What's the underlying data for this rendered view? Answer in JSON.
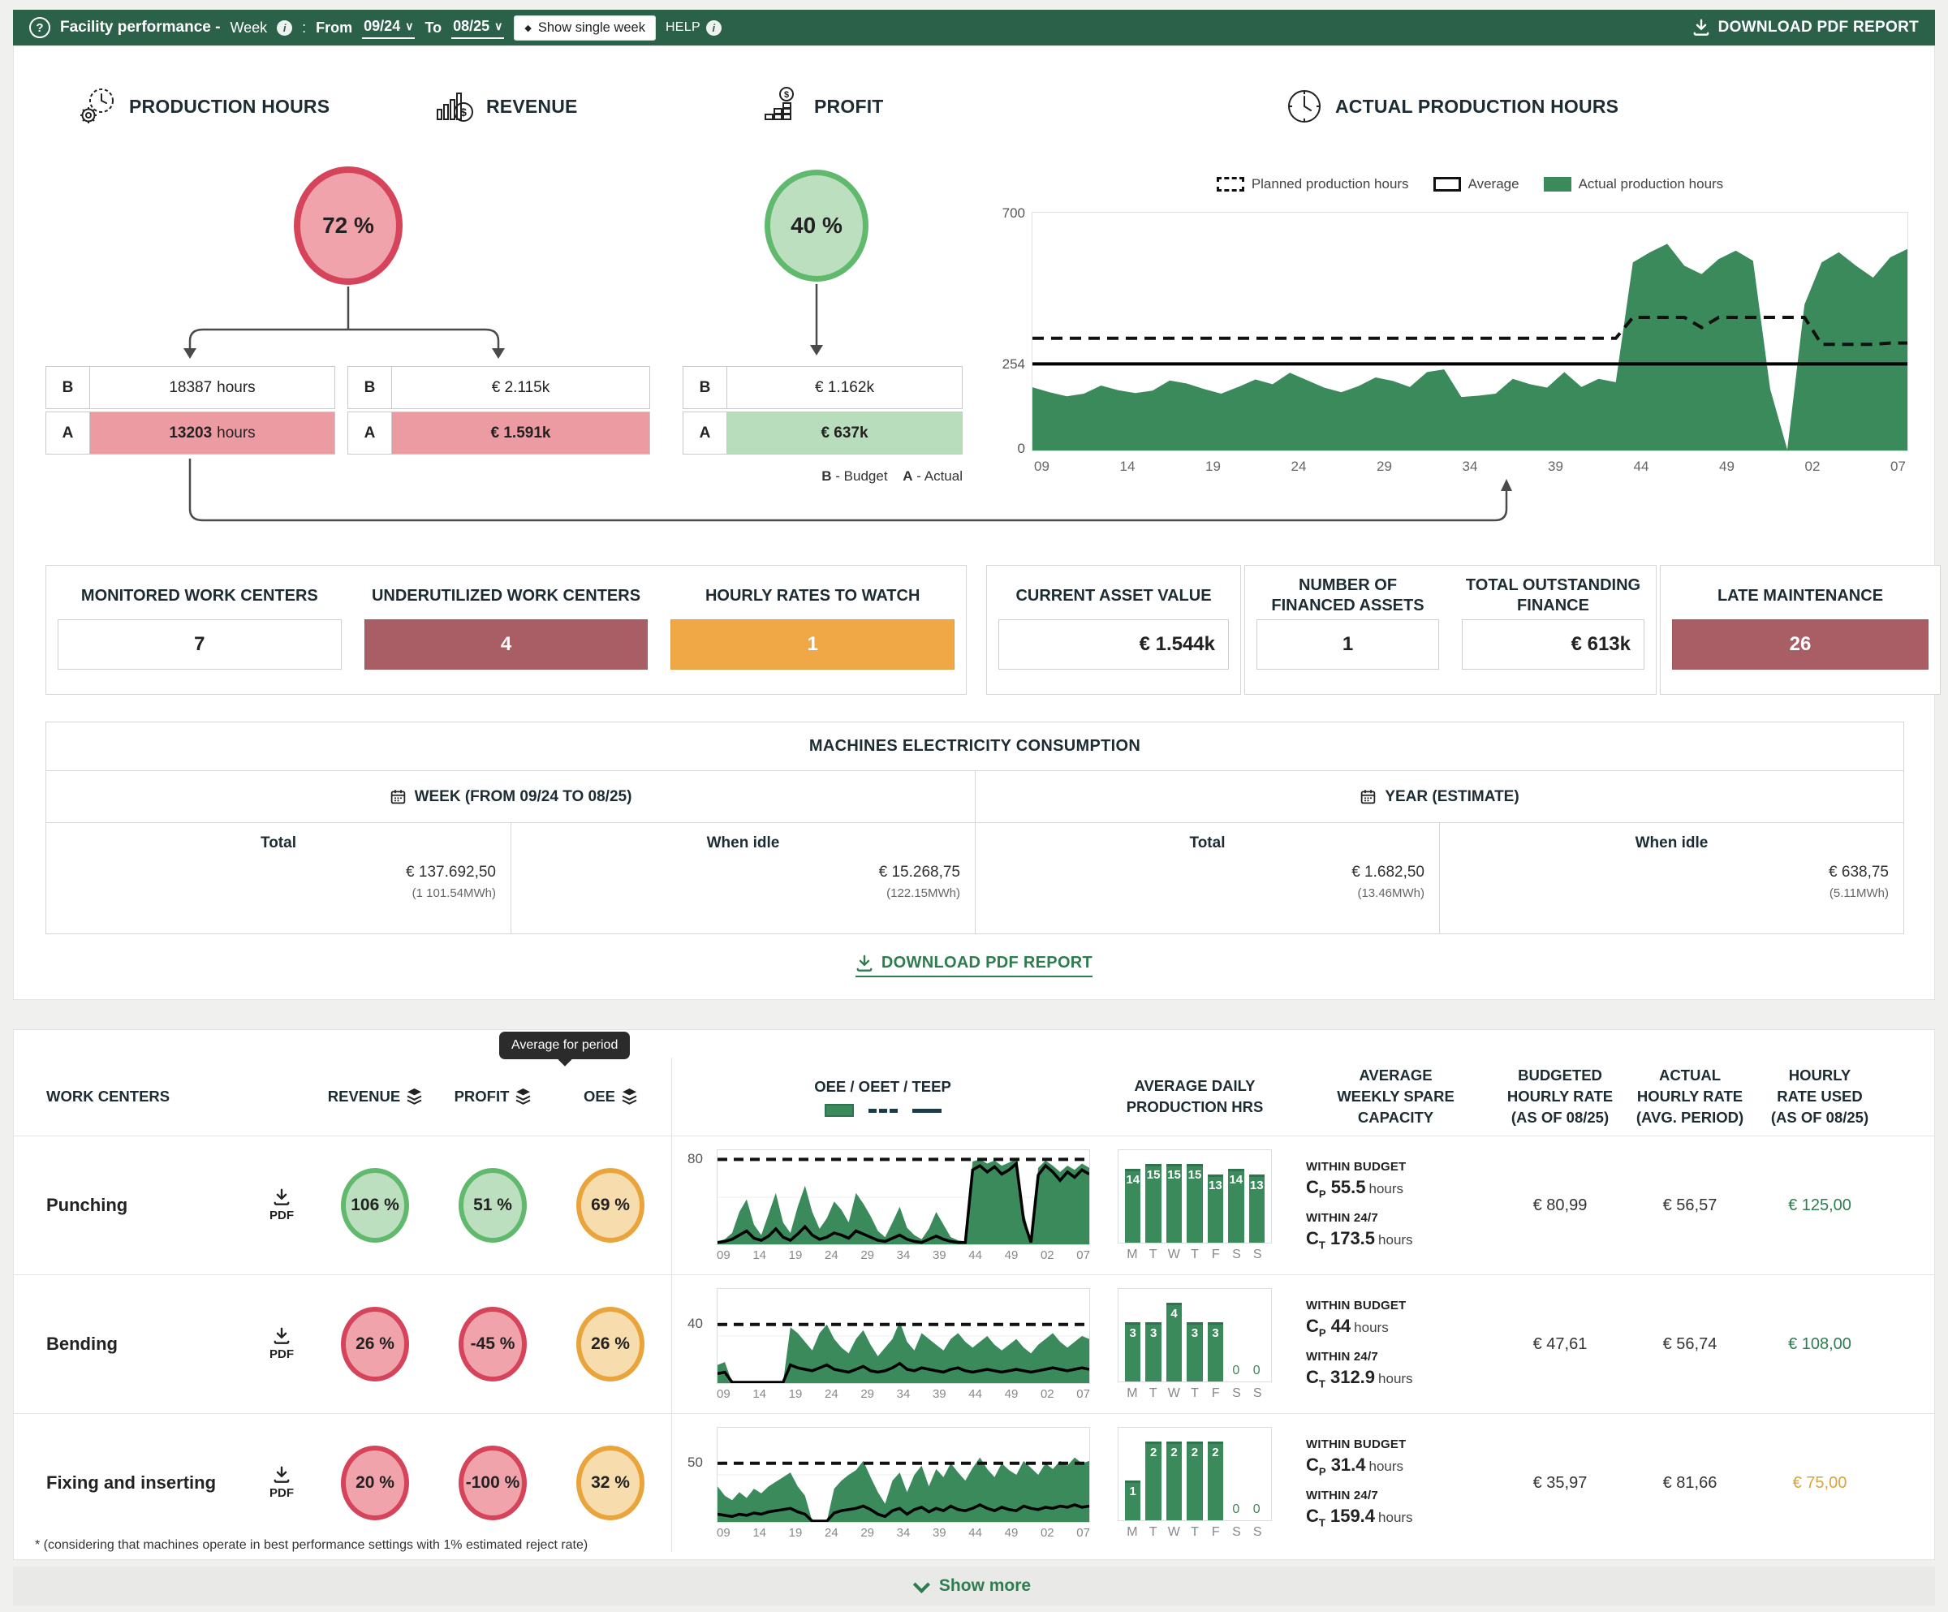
{
  "colors": {
    "header_green": "#2c6149",
    "chart_green": "#3a8a5c",
    "link_green": "#2e7d51",
    "red_border": "#d6445c",
    "red_fill": "#f0a3ab",
    "green_border": "#61b96d",
    "green_fill": "#bcdfc0",
    "orange_border": "#e9a43b",
    "orange_fill": "#f7dcae",
    "dark_red_box": "#a95e65",
    "orange_box": "#efa845",
    "rate_orange": "#d9a43a"
  },
  "header": {
    "logo_glyph": "?",
    "title": "Facility performance -",
    "week_label": "Week",
    "colon": ":",
    "from_label": "From",
    "from_value": "09/24",
    "to_label": "To",
    "to_value": "08/25",
    "single_week_button": "Show single week",
    "help_label": "HELP",
    "download_button": "DOWNLOAD PDF REPORT"
  },
  "kpi": {
    "production_hours": {
      "title": "PRODUCTION HOURS",
      "percent": "72 %",
      "status": "red",
      "budget_num": "18387",
      "budget_unit": "hours",
      "actual_num": "13203",
      "actual_unit": "hours",
      "actual_status": "red"
    },
    "revenue": {
      "title": "REVENUE",
      "budget": "€ 2.115k",
      "actual": "€ 1.591k",
      "actual_status": "red"
    },
    "profit": {
      "title": "PROFIT",
      "percent": "40 %",
      "status": "green",
      "budget": "€ 1.162k",
      "actual": "€ 637k",
      "actual_status": "green"
    },
    "row_label_budget": "B",
    "row_label_actual": "A",
    "legend": {
      "b": "B",
      "b_text": "- Budget",
      "a": "A",
      "a_text": "- Actual"
    }
  },
  "production_chart": {
    "title": "ACTUAL PRODUCTION HOURS",
    "legend_planned": "Planned production hours",
    "legend_average": "Average",
    "legend_actual": "Actual production hours",
    "y_tick_top": "700",
    "y_tick_mid": "254",
    "y_tick_bottom": "0"
  },
  "stats": {
    "monitored": {
      "label": "MONITORED WORK CENTERS",
      "value": "7",
      "style": "plain"
    },
    "underutilized": {
      "label": "UNDERUTILIZED WORK CENTERS",
      "value": "4",
      "style": "darkred"
    },
    "hourly_watch": {
      "label": "HOURLY RATES TO WATCH",
      "value": "1",
      "style": "orange"
    },
    "asset_value": {
      "label": "CURRENT ASSET VALUE",
      "value": "€ 1.544k"
    },
    "financed_assets": {
      "label": "NUMBER OF FINANCED ASSETS",
      "value": "1"
    },
    "outstanding_finance": {
      "label": "TOTAL OUTSTANDING FINANCE",
      "value": "€ 613k"
    },
    "late_maintenance": {
      "label": "LATE MAINTENANCE",
      "value": "26"
    }
  },
  "electricity": {
    "title": "MACHINES ELECTRICITY CONSUMPTION",
    "week_header": "WEEK (FROM 09/24 TO 08/25)",
    "year_header": "YEAR (ESTIMATE)",
    "col_total": "Total",
    "col_idle": "When idle",
    "week_total": "€ 137.692,50",
    "week_total_mwh": "(1 101.54MWh)",
    "week_idle": "€ 15.268,75",
    "week_idle_mwh": "(122.15MWh)",
    "year_total": "€ 1.682,50",
    "year_total_mwh": "(13.46MWh)",
    "year_idle": "€ 638,75",
    "year_idle_mwh": "(5.11MWh)"
  },
  "download_link": "DOWNLOAD PDF REPORT",
  "table": {
    "tooltip": "Average for period",
    "headers": {
      "work_centers": "WORK CENTERS",
      "revenue": "REVENUE",
      "profit": "PROFIT",
      "oee": "OEE",
      "oee_legend_title": "OEE / OEET / TEEP",
      "daily": "AVERAGE DAILY PRODUCTION HRS",
      "spare": "AVERAGE WEEKLY SPARE CAPACITY",
      "budgeted": "BUDGETED HOURLY RATE (AS OF 08/25)",
      "actual": "ACTUAL HOURLY RATE (AVG. PERIOD)",
      "used": "HOURLY RATE USED (AS OF 08/25)"
    },
    "within_budget_label": "WITHIN BUDGET",
    "within_247_label": "WITHIN 24/7",
    "cp_symbol": "C",
    "cp_sub": "P",
    "ct_symbol": "C",
    "ct_sub": "T",
    "hours_unit": "hours",
    "pdf_label": "PDF",
    "rows": [
      {
        "name": "Punching",
        "revenue": "106 %",
        "revenue_status": "green",
        "profit": "51 %",
        "profit_status": "green",
        "oee": "69 %",
        "oee_status": "orange",
        "cp": "55.5",
        "ct": "173.5",
        "budgeted_rate": "€ 80,99",
        "actual_rate": "€ 56,57",
        "used_rate": "€ 125,00",
        "used_rate_status": "green"
      },
      {
        "name": "Bending",
        "revenue": "26 %",
        "revenue_status": "red",
        "profit": "-45 %",
        "profit_status": "red",
        "oee": "26 %",
        "oee_status": "orange",
        "cp": "44",
        "ct": "312.9",
        "budgeted_rate": "€ 47,61",
        "actual_rate": "€ 56,74",
        "used_rate": "€ 108,00",
        "used_rate_status": "green"
      },
      {
        "name": "Fixing and inserting",
        "revenue": "20 %",
        "revenue_status": "red",
        "profit": "-100 %",
        "profit_status": "red",
        "oee": "32 %",
        "oee_status": "orange",
        "cp": "31.4",
        "ct": "159.4",
        "budgeted_rate": "€ 35,97",
        "actual_rate": "€ 81,66",
        "used_rate": "€ 75,00",
        "used_rate_status": "orange"
      }
    ]
  },
  "footnote": "* (considering that machines operate in best performance settings with 1% estimated reject rate)",
  "show_more": "Show more",
  "chart_data": {
    "actual_production_hours": {
      "type": "area",
      "ymax": 700,
      "ylim": [
        0,
        700
      ],
      "x_ticks": [
        "09",
        "14",
        "19",
        "24",
        "29",
        "34",
        "39",
        "44",
        "49",
        "02",
        "07"
      ],
      "series": {
        "actual": [
          185,
          170,
          158,
          166,
          190,
          176,
          168,
          175,
          205,
          196,
          180,
          166,
          186,
          208,
          194,
          228,
          206,
          184,
          170,
          188,
          214,
          204,
          186,
          230,
          238,
          156,
          160,
          166,
          210,
          194,
          184,
          230,
          186,
          210,
          200,
          555,
          585,
          610,
          545,
          520,
          565,
          590,
          560,
          180,
          0,
          430,
          555,
          585,
          545,
          510,
          570,
          595
        ],
        "planned": [
          330,
          330,
          330,
          330,
          330,
          330,
          330,
          330,
          330,
          330,
          330,
          330,
          330,
          330,
          330,
          330,
          330,
          330,
          330,
          330,
          330,
          330,
          330,
          330,
          330,
          330,
          330,
          330,
          330,
          330,
          330,
          330,
          330,
          330,
          330,
          392,
          392,
          392,
          392,
          362,
          392,
          392,
          392,
          392,
          392,
          392,
          312,
          312,
          312,
          312,
          316,
          316
        ],
        "average": 254
      }
    },
    "punching_oee": {
      "type": "area",
      "ymax": 88,
      "x_ticks": [
        "09",
        "14",
        "19",
        "24",
        "29",
        "34",
        "39",
        "44",
        "49",
        "02",
        "07"
      ],
      "series": {
        "oee": [
          2,
          4,
          10,
          30,
          42,
          18,
          8,
          28,
          48,
          20,
          10,
          35,
          55,
          30,
          14,
          24,
          40,
          32,
          20,
          48,
          38,
          26,
          12,
          6,
          20,
          35,
          15,
          8,
          4,
          14,
          30,
          18,
          6,
          3,
          2,
          78,
          80,
          76,
          79,
          74,
          77,
          80,
          30,
          2,
          72,
          79,
          74,
          68,
          74,
          70,
          76,
          72
        ],
        "teep": [
          1,
          2,
          4,
          8,
          12,
          5,
          3,
          7,
          14,
          6,
          3,
          9,
          16,
          8,
          4,
          6,
          10,
          8,
          5,
          12,
          9,
          6,
          3,
          2,
          5,
          8,
          4,
          2,
          1,
          4,
          7,
          4,
          2,
          1,
          1,
          70,
          74,
          68,
          73,
          66,
          70,
          76,
          22,
          1,
          65,
          74,
          68,
          60,
          68,
          63,
          70,
          66
        ],
        "oeet_target": 80
      }
    },
    "bending_oee": {
      "type": "area",
      "ymax": 64,
      "x_ticks": [
        "09",
        "14",
        "19",
        "24",
        "29",
        "34",
        "39",
        "44",
        "49",
        "02",
        "07"
      ],
      "series": {
        "oee": [
          12,
          14,
          0,
          0,
          0,
          0,
          0,
          0,
          0,
          0,
          38,
          34,
          28,
          22,
          34,
          40,
          30,
          24,
          20,
          30,
          36,
          26,
          18,
          24,
          30,
          42,
          28,
          22,
          34,
          30,
          26,
          22,
          30,
          34,
          28,
          24,
          28,
          32,
          26,
          22,
          26,
          30,
          24,
          20,
          26,
          30,
          34,
          28,
          24,
          28,
          32,
          30
        ],
        "teep": [
          6,
          7,
          0,
          0,
          0,
          0,
          0,
          0,
          0,
          0,
          12,
          10,
          9,
          8,
          10,
          12,
          9,
          8,
          7,
          9,
          11,
          8,
          7,
          8,
          10,
          13,
          9,
          8,
          10,
          9,
          8,
          7,
          9,
          10,
          8,
          7,
          8,
          9,
          8,
          7,
          8,
          9,
          8,
          7,
          8,
          9,
          10,
          9,
          8,
          9,
          10,
          9
        ],
        "oeet_target": 40
      }
    },
    "fixing_oee": {
      "type": "area",
      "ymax": 80,
      "x_ticks": [
        "09",
        "14",
        "19",
        "24",
        "29",
        "34",
        "39",
        "44",
        "49",
        "02",
        "07"
      ],
      "series": {
        "oee": [
          30,
          22,
          18,
          25,
          20,
          28,
          24,
          30,
          34,
          38,
          42,
          30,
          22,
          0,
          0,
          0,
          28,
          35,
          40,
          44,
          52,
          38,
          25,
          15,
          35,
          42,
          25,
          40,
          48,
          30,
          45,
          38,
          50,
          42,
          35,
          46,
          55,
          45,
          38,
          50,
          44,
          40,
          52,
          46,
          40,
          50,
          45,
          52,
          48,
          55,
          50,
          52
        ],
        "teep": [
          6,
          5,
          4,
          6,
          5,
          7,
          6,
          8,
          9,
          10,
          11,
          8,
          6,
          0,
          0,
          0,
          7,
          9,
          10,
          11,
          13,
          10,
          6,
          4,
          9,
          11,
          6,
          10,
          12,
          8,
          11,
          9,
          13,
          10,
          9,
          11,
          14,
          11,
          9,
          12,
          10,
          9,
          13,
          11,
          10,
          12,
          11,
          13,
          12,
          14,
          12,
          13
        ],
        "oeet_target": 50
      }
    },
    "punching_daily": {
      "type": "bar",
      "categories": [
        "M",
        "T",
        "W",
        "T",
        "F",
        "S",
        "S"
      ],
      "values": [
        14,
        15,
        15,
        15,
        13,
        14,
        13
      ]
    },
    "bending_daily": {
      "type": "bar",
      "categories": [
        "M",
        "T",
        "W",
        "T",
        "F",
        "S",
        "S"
      ],
      "values": [
        3,
        3,
        4,
        3,
        3,
        0,
        0
      ]
    },
    "fixing_daily": {
      "type": "bar",
      "categories": [
        "M",
        "T",
        "W",
        "T",
        "F",
        "S",
        "S"
      ],
      "values": [
        1,
        2,
        2,
        2,
        2,
        0,
        0
      ]
    }
  }
}
